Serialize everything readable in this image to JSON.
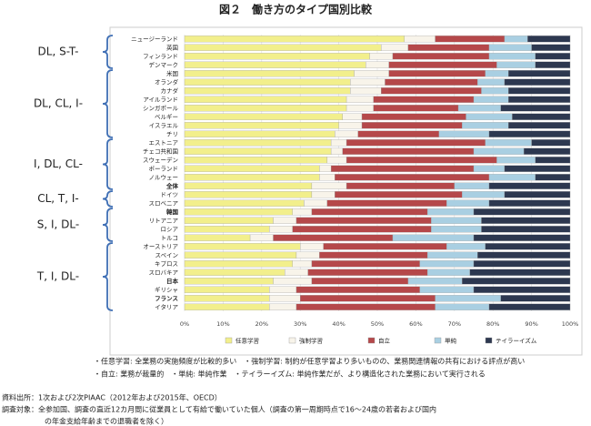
{
  "chart_data": {
    "type": "stacked-barh",
    "title": "図２　働き方のタイプ国別比較",
    "categories": [
      "ニュージーランド",
      "英国",
      "フィンランド",
      "デンマーク",
      "米国",
      "オランダ",
      "カナダ",
      "アイルランド",
      "シンガポール",
      "ベルギー",
      "イスラエル",
      "チリ",
      "エストニア",
      "チェコ共和国",
      "スウェーデン",
      "ポーランド",
      "ノルウェー",
      "全体",
      "ドイツ",
      "スロベニア",
      "韓国",
      "リトアニア",
      "ロシア",
      "トルコ",
      "オーストリア",
      "スペイン",
      "キプロス",
      "スロバキア",
      "日本",
      "ギリシャ",
      "フランス",
      "イタリア"
    ],
    "series": [
      {
        "name": "任意学習",
        "color": "#f2ef8c",
        "values": [
          57,
          51,
          48,
          47,
          44,
          43,
          43,
          42,
          42,
          41,
          40,
          39,
          38,
          38,
          37,
          35,
          35,
          33,
          33,
          31,
          28,
          23,
          22,
          17,
          30,
          29,
          28,
          26,
          23,
          22,
          22,
          22
        ]
      },
      {
        "name": "強制学習",
        "color": "#f8f4ea",
        "values": [
          8,
          7,
          6,
          6,
          9,
          9,
          8,
          7,
          7,
          5,
          6,
          6,
          4,
          3,
          5,
          3,
          4,
          9,
          6,
          6,
          5,
          6,
          6,
          6,
          6,
          6,
          5,
          6,
          10,
          7,
          8,
          7
        ]
      },
      {
        "name": "自立",
        "color": "#b5484a",
        "values": [
          18,
          21,
          25,
          28,
          25,
          24,
          26,
          26,
          22,
          27,
          26,
          21,
          36,
          34,
          39,
          37,
          40,
          28,
          33,
          31,
          30,
          35,
          36,
          31,
          32,
          28,
          28,
          31,
          25,
          32,
          35,
          36
        ]
      },
      {
        "name": "単純",
        "color": "#a9cfe2",
        "values": [
          6,
          11,
          12,
          10,
          6,
          7,
          7,
          9,
          11,
          12,
          12,
          13,
          12,
          13,
          10,
          8,
          12,
          9,
          11,
          11,
          12,
          13,
          13,
          21,
          10,
          13,
          14,
          11,
          14,
          14,
          17,
          14
        ]
      },
      {
        "name": "テイラーイズム",
        "color": "#2d3850",
        "values": [
          11,
          10,
          9,
          9,
          16,
          17,
          16,
          16,
          18,
          15,
          16,
          21,
          10,
          12,
          9,
          17,
          9,
          21,
          17,
          21,
          25,
          23,
          23,
          25,
          22,
          24,
          25,
          26,
          28,
          25,
          18,
          21
        ]
      }
    ],
    "xlim": [
      0,
      100
    ],
    "xticks": [
      {
        "value": 0,
        "label": "0%"
      },
      {
        "value": 10,
        "label": "10%"
      },
      {
        "value": 20,
        "label": "20%"
      },
      {
        "value": 30,
        "label": "30%"
      },
      {
        "value": 40,
        "label": "40%"
      },
      {
        "value": 50,
        "label": "50%"
      },
      {
        "value": 60,
        "label": "60%"
      },
      {
        "value": 70,
        "label": "70%"
      },
      {
        "value": 80,
        "label": "80%"
      },
      {
        "value": 90,
        "label": "90%"
      },
      {
        "value": 100,
        "label": "100%"
      }
    ],
    "grid": true,
    "annotations": [
      "DL, S-T-",
      "DL, CL, I-",
      "I, DL, CL-",
      "CL, T, I-",
      "S, I, DL-",
      "T, I, DL-"
    ],
    "notes": [
      "・任意学習: 全業務の実施頻度が比較的多い　・強制学習: 制約が任意学習より多いものの、業務関連情報の共有における評点が高い",
      "・自立: 業務が裁量的　・単純: 単純作業　・テイラーイズム: 単純作業だが、より構造化された業務において実行される"
    ],
    "source": [
      "資料出所：1次および2次PIAAC（2012年および2015年、OECD）",
      "調査対象：全参加国、調査の直近12カ月間に従業員として有給で働いていた個人（調査の第一周期時点で16～24歳の若者および国内",
      "の年金支給年齢までの退職者を除く）"
    ]
  }
}
